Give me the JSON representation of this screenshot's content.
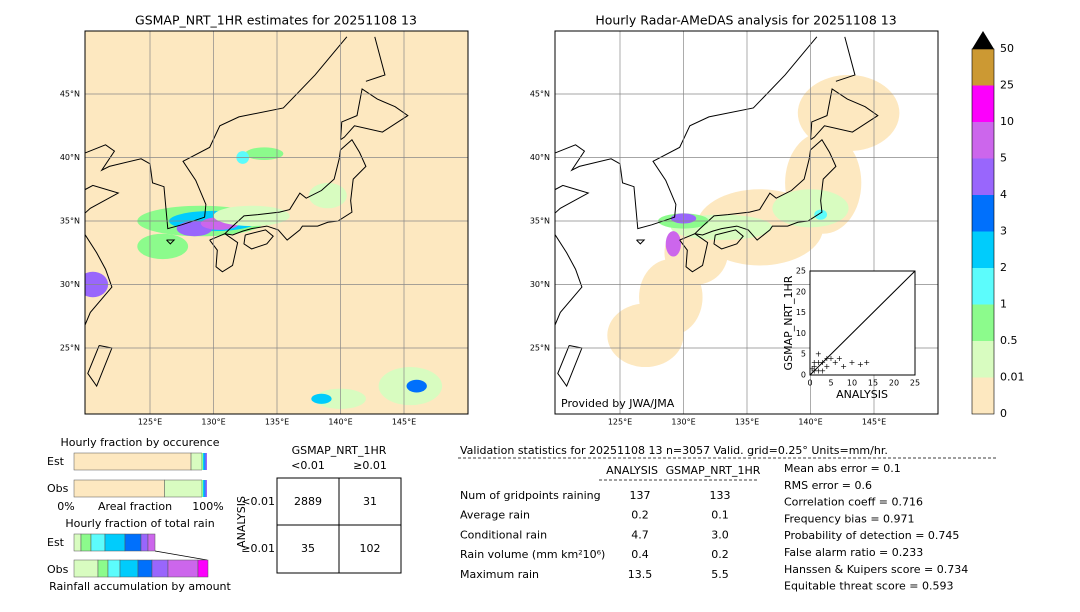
{
  "left_map": {
    "title": "GSMAP_NRT_1HR estimates for 20251108 13",
    "lat_labels": [
      "45°N",
      "40°N",
      "35°N",
      "30°N",
      "25°N"
    ],
    "lon_labels": [
      "125°E",
      "130°E",
      "135°E",
      "140°E",
      "145°E"
    ]
  },
  "right_map": {
    "title": "Hourly Radar-AMeDAS analysis for 20251108 13",
    "lat_labels": [
      "45°N",
      "40°N",
      "35°N",
      "30°N",
      "25°N"
    ],
    "lon_labels": [
      "125°E",
      "130°E",
      "135°E",
      "140°E",
      "145°E"
    ],
    "credit": "Provided by JWA/JMA"
  },
  "colorbar": {
    "labels": [
      "0",
      "0.01",
      "0.5",
      "1",
      "2",
      "3",
      "4",
      "5",
      "10",
      "25",
      "50"
    ]
  },
  "scatter_inset": {
    "x_label": "ANALYSIS",
    "y_label": "GSMAP_NRT_1HR",
    "x_ticks": [
      "0",
      "5",
      "10",
      "15",
      "20",
      "25"
    ],
    "y_ticks": [
      "0",
      "5",
      "10",
      "15",
      "20",
      "25"
    ]
  },
  "occurrence_panel": {
    "title": "Hourly fraction by occurence",
    "rows": [
      "Est",
      "Obs"
    ],
    "axis_left": "0%",
    "axis_label": "Areal fraction",
    "axis_right": "100%"
  },
  "total_rain_panel": {
    "title": "Hourly fraction of total rain",
    "rows": [
      "Est",
      "Obs"
    ],
    "caption": "Rainfall accumulation by amount"
  },
  "contingency": {
    "col_title": "GSMAP_NRT_1HR",
    "col_headers": [
      "<0.01",
      "≥0.01"
    ],
    "row_title": "ANALYSIS",
    "row_headers": [
      "<0.01",
      "≥0.01"
    ],
    "cells": [
      [
        "2889",
        "31"
      ],
      [
        "35",
        "102"
      ]
    ]
  },
  "validation": {
    "title": "Validation statistics for 20251108 13  n=3057 Valid. grid=0.25° Units=mm/hr.",
    "headers": [
      "ANALYSIS",
      "GSMAP_NRT_1HR"
    ],
    "rows": [
      {
        "label": "Num of gridpoints raining",
        "values": [
          "137",
          "133"
        ]
      },
      {
        "label": "Average rain",
        "values": [
          "0.2",
          "0.1"
        ]
      },
      {
        "label": "Conditional rain",
        "values": [
          "4.7",
          "3.0"
        ]
      },
      {
        "label": "Rain volume (mm km²10⁶)",
        "values": [
          "0.4",
          "0.2"
        ]
      },
      {
        "label": "Maximum rain",
        "values": [
          "13.5",
          "5.5"
        ]
      }
    ],
    "scores": [
      "Mean abs error =    0.1",
      "RMS error =    0.6",
      "Correlation coeff =  0.716",
      "Frequency bias =  0.971",
      "Probability of detection =  0.745",
      "False alarm ratio =  0.233",
      "Hanssen & Kuipers score =  0.734",
      "Equitable threat score =  0.593"
    ]
  }
}
